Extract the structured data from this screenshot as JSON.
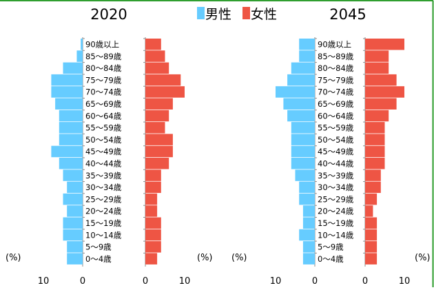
{
  "legend": {
    "male": "男性",
    "female": "女性"
  },
  "colors": {
    "male": "#66ccff",
    "female": "#ee5544",
    "border": "#2f9e2f"
  },
  "chart_data": [
    {
      "type": "bar",
      "title": "2020",
      "unit_label": "(%)",
      "categories": [
        "90歳以上",
        "85～89歳",
        "80～84歳",
        "75～79歳",
        "70～74歳",
        "65～69歳",
        "60～64歳",
        "55～59歳",
        "50～54歳",
        "45～49歳",
        "40～44歳",
        "35～39歳",
        "30～34歳",
        "25～29歳",
        "20～24歳",
        "15～19歳",
        "10～14歳",
        "5～9歳",
        "0～4歳"
      ],
      "series": [
        {
          "name": "男性",
          "values": [
            0.5,
            1.5,
            5,
            8,
            8,
            7,
            6,
            6,
            6,
            8,
            6,
            5,
            4,
            5,
            4,
            5,
            5,
            4,
            4
          ]
        },
        {
          "name": "女性",
          "values": [
            4,
            5,
            6,
            9,
            10,
            7,
            6,
            5,
            7,
            7,
            6,
            4,
            4,
            3,
            3,
            4,
            4,
            4,
            3
          ]
        }
      ],
      "male_ticks": [
        10,
        0
      ],
      "female_ticks": [
        0,
        10
      ],
      "xlim": [
        0,
        10
      ]
    },
    {
      "type": "bar",
      "title": "2045",
      "unit_label": "(%)",
      "categories": [
        "90歳以上",
        "85～89歳",
        "80～84歳",
        "75～79歳",
        "70～74歳",
        "65～69歳",
        "60～64歳",
        "55～59歳",
        "50～54歳",
        "45～49歳",
        "40～44歳",
        "35～39歳",
        "30～34歳",
        "25～29歳",
        "20～24歳",
        "15～19歳",
        "10～14歳",
        "5～9歳",
        "0～4歳"
      ],
      "series": [
        {
          "name": "男性",
          "values": [
            4,
            4,
            6,
            7,
            10,
            8,
            7,
            6,
            6,
            6,
            6,
            5,
            4,
            4,
            3,
            3,
            4,
            3,
            3
          ]
        },
        {
          "name": "女性",
          "values": [
            10,
            6,
            6,
            8,
            10,
            8,
            6,
            5,
            5,
            5,
            5,
            4,
            4,
            3,
            2,
            3,
            3,
            3,
            3
          ]
        }
      ],
      "male_ticks": [
        10,
        0
      ],
      "female_ticks": [
        0,
        10
      ],
      "xlim": [
        0,
        10
      ]
    }
  ]
}
